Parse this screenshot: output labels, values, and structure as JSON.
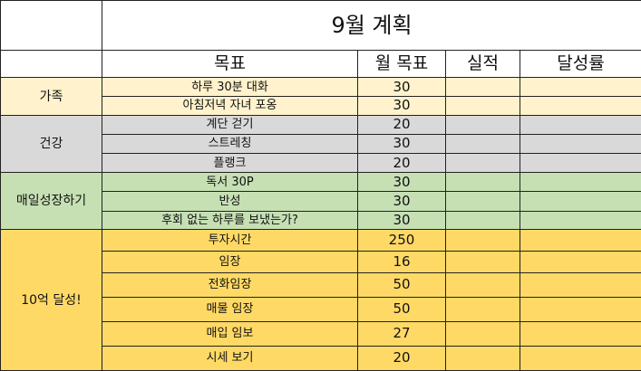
{
  "title": "9월 계획",
  "headers": {
    "goal": "목표",
    "monthly_goal": "월 목표",
    "actual": "실적",
    "achievement": "달성률"
  },
  "colors": {
    "family": "#fff2cc",
    "health": "#d9d9d9",
    "growth": "#c6e0b4",
    "wealth": "#ffd966"
  },
  "groups": [
    {
      "category": "가족",
      "color": "#fff2cc",
      "rows": [
        {
          "goal": "하루 30분 대화",
          "target": "30"
        },
        {
          "goal": "아침저녁 자녀 포옹",
          "target": "30"
        }
      ]
    },
    {
      "category": "건강",
      "color": "#d9d9d9",
      "rows": [
        {
          "goal": "계단 걷기",
          "target": "20"
        },
        {
          "goal": "스트레칭",
          "target": "30"
        },
        {
          "goal": "플랭크",
          "target": "20"
        }
      ]
    },
    {
      "category": "매일성장하기",
      "color": "#c6e0b4",
      "rows": [
        {
          "goal": "독서 30P",
          "target": "30"
        },
        {
          "goal": "반성",
          "target": "30"
        },
        {
          "goal": "후회 없는 하루를 보냈는가?",
          "target": "30"
        }
      ]
    },
    {
      "category": "10억 달성!",
      "color": "#ffd966",
      "rows": [
        {
          "goal": "투자시간",
          "target": "250"
        },
        {
          "goal": "임장",
          "target": "16"
        },
        {
          "goal": "전화임장",
          "target": "50"
        },
        {
          "goal": "매물 임장",
          "target": "50"
        },
        {
          "goal": "매입 임보",
          "target": "27"
        },
        {
          "goal": "시세 보기",
          "target": "20"
        }
      ]
    }
  ]
}
